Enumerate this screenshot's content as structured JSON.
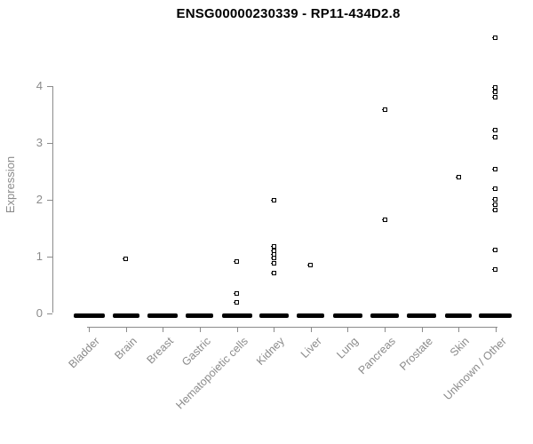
{
  "title": "ENSG00000230339 - RP11-434D2.8",
  "y_axis": {
    "label": "Expression",
    "ticks": [
      "0",
      "1",
      "2",
      "3",
      "4"
    ]
  },
  "colors": {
    "point": "#000000",
    "axis": "#8b8b8b",
    "tick_label": "#8b8b8b",
    "title": "#000000",
    "background": "#ffffff"
  },
  "chart_data": {
    "type": "scatter",
    "title": "ENSG00000230339 - RP11-434D2.8",
    "xlabel": "",
    "ylabel": "Expression",
    "ylim": [
      0,
      4.9
    ],
    "yticks": [
      0,
      1,
      2,
      3,
      4
    ],
    "grid": false,
    "legend": "none",
    "marker": "open-square",
    "note": "Every category has a dense cluster of points at expression 0, drawn as a thick black dash on the baseline.",
    "categories": [
      "Bladder",
      "Brain",
      "Breast",
      "Gastric",
      "Hematopoietic cells",
      "Kidney",
      "Liver",
      "Lung",
      "Pancreas",
      "Prostate",
      "Skin",
      "Unknown / Other"
    ],
    "series": [
      {
        "name": "Bladder",
        "values": [],
        "zero_cluster": true,
        "zero_bar_width": 35
      },
      {
        "name": "Brain",
        "values": [
          0.95
        ],
        "zero_cluster": true,
        "zero_bar_width": 30
      },
      {
        "name": "Breast",
        "values": [],
        "zero_cluster": true,
        "zero_bar_width": 34
      },
      {
        "name": "Gastric",
        "values": [],
        "zero_cluster": true,
        "zero_bar_width": 31
      },
      {
        "name": "Hematopoietic cells",
        "values": [
          0.9,
          0.34,
          0.18
        ],
        "zero_cluster": true,
        "zero_bar_width": 34
      },
      {
        "name": "Kidney",
        "values": [
          1.99,
          1.17,
          1.1,
          1.03,
          0.97,
          0.88,
          0.71
        ],
        "zero_cluster": true,
        "zero_bar_width": 33
      },
      {
        "name": "Liver",
        "values": [
          0.85
        ],
        "zero_cluster": true,
        "zero_bar_width": 31
      },
      {
        "name": "Lung",
        "values": [],
        "zero_cluster": true,
        "zero_bar_width": 33
      },
      {
        "name": "Pancreas",
        "values": [
          3.58,
          1.65
        ],
        "zero_cluster": true,
        "zero_bar_width": 32
      },
      {
        "name": "Prostate",
        "values": [],
        "zero_cluster": true,
        "zero_bar_width": 33
      },
      {
        "name": "Skin",
        "values": [
          2.4
        ],
        "zero_cluster": true,
        "zero_bar_width": 30
      },
      {
        "name": "Unknown / Other",
        "values": [
          4.85,
          3.98,
          3.89,
          3.8,
          3.23,
          3.1,
          2.53,
          2.19,
          2.01,
          1.91,
          1.81,
          1.11,
          0.76
        ],
        "zero_cluster": true,
        "zero_bar_width": 37
      }
    ]
  }
}
